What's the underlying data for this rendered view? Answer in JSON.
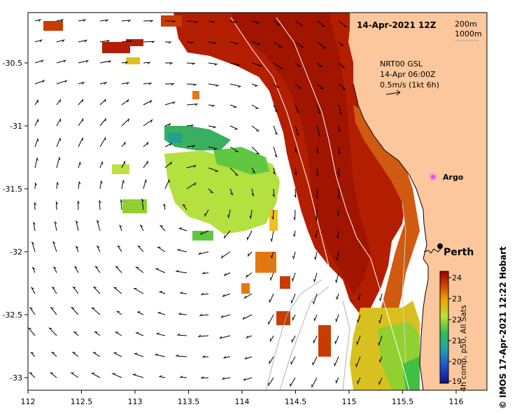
{
  "title": "14-Apr-2021 12Z",
  "contours": [
    "200m",
    "1000m"
  ],
  "current_info": {
    "line1": "NRT00 GSL",
    "line2": "14-Apr 06:00Z",
    "line3": "0.5m/s (1kt 6h)"
  },
  "places": {
    "perth": "Perth",
    "argo": "Argo"
  },
  "colorbar": {
    "label": "4h comp, p50, All Sats",
    "ticks": [
      "24",
      "23",
      "22",
      "21",
      "20",
      "19"
    ]
  },
  "credit": "© IMOS 17-Apr-2021 12:22 Hobart",
  "x_axis": {
    "ticks": [
      "112",
      "112.5",
      "113",
      "113.5",
      "114",
      "114.5",
      "115",
      "115.5",
      "116"
    ]
  },
  "y_axis": {
    "ticks": [
      "-30.5",
      "-31",
      "-31.5",
      "-32",
      "-32.5",
      "-33"
    ]
  },
  "colors": {
    "land": "#fcc79c",
    "warm": "#b41e00",
    "mid": "#e06a00",
    "cool": "#b4e040",
    "cold": "#30b050"
  }
}
